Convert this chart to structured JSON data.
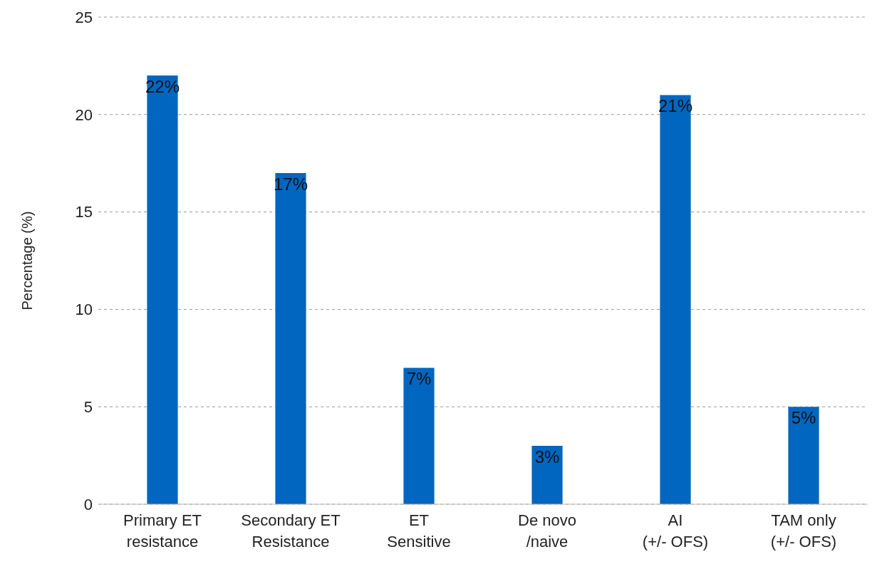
{
  "chart_data": {
    "type": "bar",
    "ylabel": "Percentage (%)",
    "categories": [
      "Primary ET\nresistance",
      "Secondary ET\nResistance",
      "ET\nSensitive",
      "De novo\n/naive",
      "AI\n(+/- OFS)",
      "TAM only\n(+/- OFS)"
    ],
    "values": [
      22,
      17,
      7,
      3,
      21,
      5
    ],
    "color": "#0066c0",
    "value_labels": [
      "22%",
      "17%",
      "7%",
      "3%",
      "21%",
      "5%"
    ],
    "ylim": [
      0,
      25
    ],
    "yticks": [
      0,
      5,
      10,
      15,
      20,
      25
    ],
    "grid": "y"
  }
}
